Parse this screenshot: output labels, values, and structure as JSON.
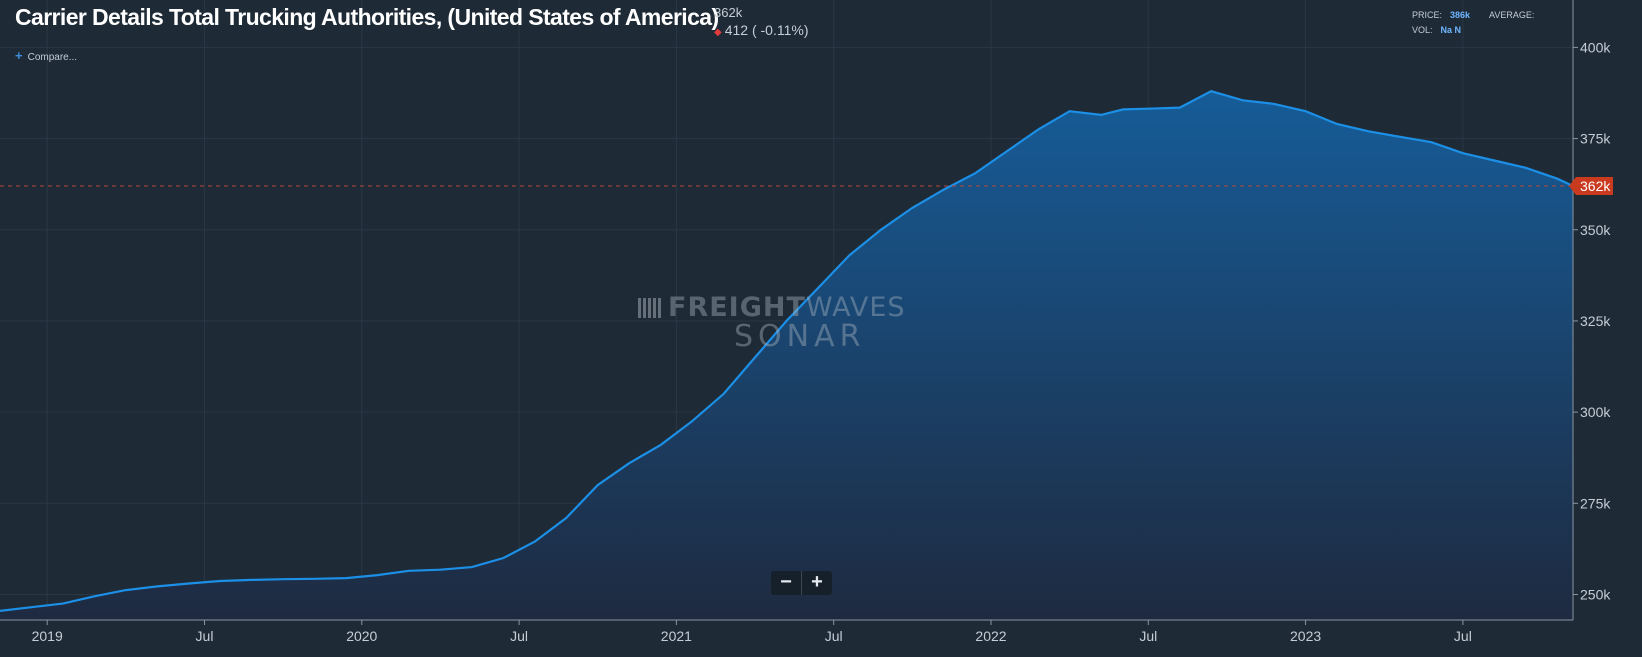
{
  "header": {
    "title": "Carrier Details Total Trucking Authorities, (United States of America)",
    "last_value": "362k",
    "change_text": "412 ( -0.11%)"
  },
  "compare_label": "Compare...",
  "stats": {
    "price_label": "PRICE:",
    "price_value": "386k",
    "average_label": "AVERAGE:",
    "vol_label": "VOL:",
    "vol_value": "Na N"
  },
  "watermark": {
    "brand_bold": "FREIGHT",
    "brand_light": "WAVES",
    "product": "SONAR"
  },
  "zoom": {
    "minus": "−",
    "plus": "+"
  },
  "colors": {
    "background": "#1e2a36",
    "line": "#1c8fe6",
    "area_top": "#165c98",
    "area_bottom": "#1e2a40",
    "current_badge": "#c93a1e",
    "ref_line": "#b84a3a"
  },
  "chart_data": {
    "type": "area",
    "title": "Carrier Details Total Trucking Authorities, (United States of America)",
    "xlabel": "",
    "ylabel": "",
    "y_unit": "k",
    "ylim": [
      243,
      413
    ],
    "xlim": [
      2018.85,
      2023.85
    ],
    "yticks": [
      250,
      275,
      300,
      325,
      350,
      375,
      400
    ],
    "ytick_labels": [
      "250k",
      "275k",
      "300k",
      "325k",
      "350k",
      "375k",
      "400k"
    ],
    "xticks": [
      2019.0,
      2019.5,
      2020.0,
      2020.5,
      2021.0,
      2021.5,
      2022.0,
      2022.5,
      2023.0,
      2023.5
    ],
    "xtick_labels": [
      "2019",
      "Jul",
      "2020",
      "Jul",
      "2021",
      "Jul",
      "2022",
      "Jul",
      "2023",
      "Jul"
    ],
    "current_value": 362,
    "current_label": "362k",
    "series": [
      {
        "name": "Total Trucking Authorities",
        "x": [
          2018.85,
          2018.95,
          2019.05,
          2019.15,
          2019.25,
          2019.35,
          2019.45,
          2019.55,
          2019.65,
          2019.75,
          2019.85,
          2019.95,
          2020.05,
          2020.15,
          2020.25,
          2020.35,
          2020.45,
          2020.55,
          2020.65,
          2020.75,
          2020.85,
          2020.95,
          2021.05,
          2021.15,
          2021.25,
          2021.35,
          2021.45,
          2021.55,
          2021.65,
          2021.75,
          2021.85,
          2021.95,
          2022.05,
          2022.15,
          2022.25,
          2022.35,
          2022.42,
          2022.5,
          2022.6,
          2022.7,
          2022.8,
          2022.9,
          2023.0,
          2023.1,
          2023.2,
          2023.3,
          2023.4,
          2023.5,
          2023.6,
          2023.7,
          2023.8,
          2023.85
        ],
        "values": [
          245.5,
          246.5,
          247.5,
          249.5,
          251.2,
          252.2,
          253.0,
          253.7,
          254.0,
          254.2,
          254.3,
          254.5,
          255.3,
          256.5,
          256.8,
          257.5,
          260.0,
          264.5,
          271.0,
          280.0,
          286.0,
          291.0,
          297.5,
          305.0,
          315.0,
          325.0,
          334.0,
          343.0,
          350.0,
          356.0,
          361.0,
          365.5,
          371.5,
          377.5,
          382.5,
          381.5,
          383.0,
          383.2,
          383.5,
          388.0,
          385.5,
          384.5,
          382.5,
          379.0,
          377.0,
          375.5,
          374.0,
          371.0,
          369.0,
          367.0,
          364.0,
          362.0
        ]
      }
    ]
  }
}
